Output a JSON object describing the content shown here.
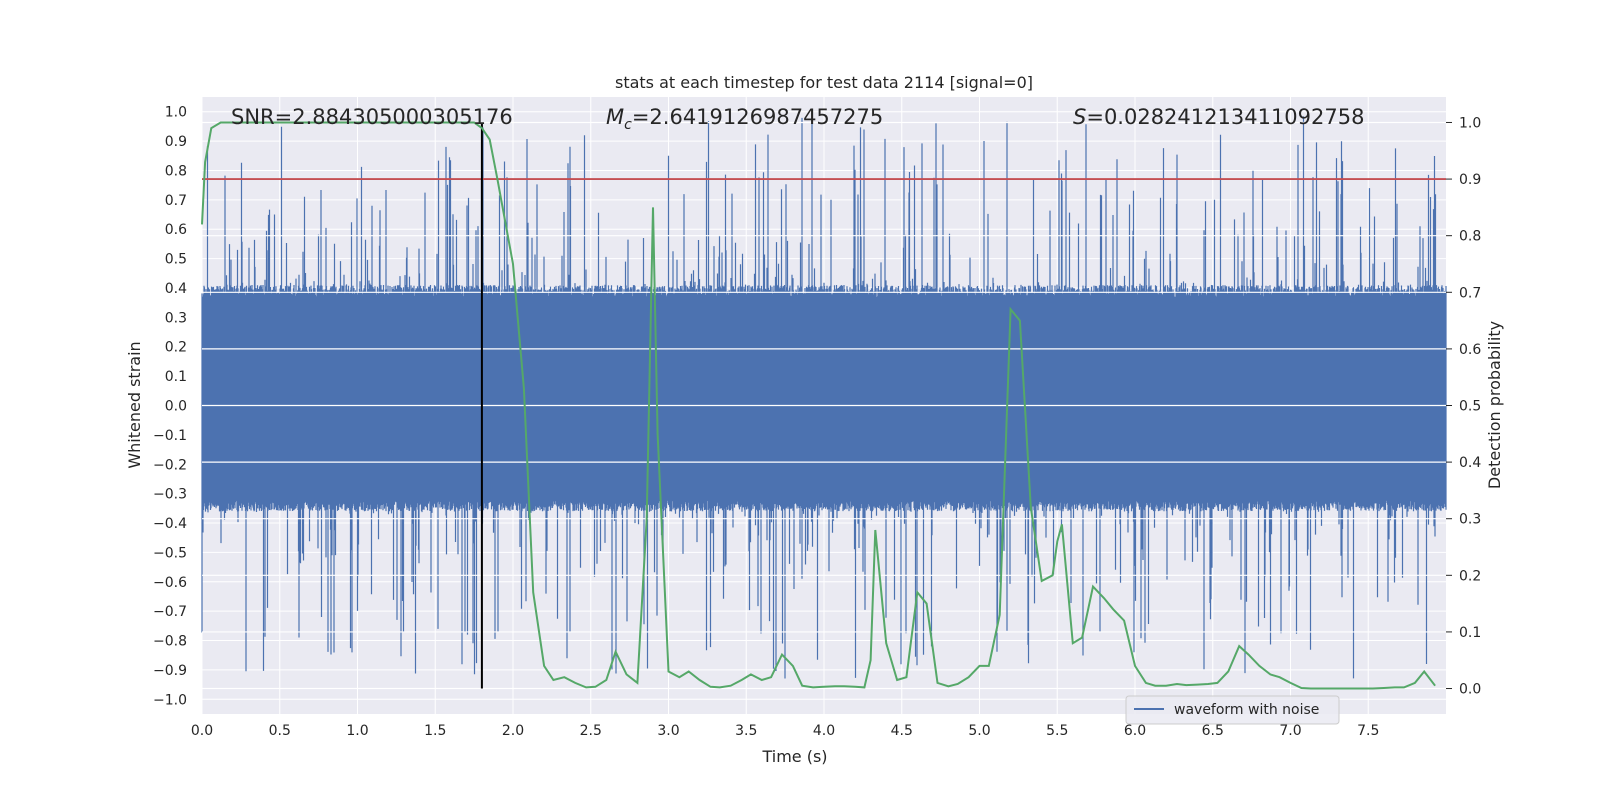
{
  "chart_data": {
    "type": "line",
    "title": "stats at each timestep for test data 2114 [signal=0]",
    "xlabel": "Time (s)",
    "ylabel": "Whitened strain",
    "y2label": "Detection probability",
    "xlim": [
      0.0,
      8.0
    ],
    "ylim": [
      -1.05,
      1.05
    ],
    "y2lim": [
      -0.045,
      1.045
    ],
    "x_ticks": [
      "0.0",
      "0.5",
      "1.0",
      "1.5",
      "2.0",
      "2.5",
      "3.0",
      "3.5",
      "4.0",
      "4.5",
      "5.0",
      "5.5",
      "6.0",
      "6.5",
      "7.0",
      "7.5"
    ],
    "y_ticks": [
      "1.0",
      "0.9",
      "0.8",
      "0.7",
      "0.6",
      "0.5",
      "0.4",
      "0.3",
      "0.2",
      "0.1",
      "0.0",
      "−0.1",
      "−0.2",
      "−0.3",
      "−0.4",
      "−0.5",
      "−0.6",
      "−0.7",
      "−0.8",
      "−0.9",
      "−1.0"
    ],
    "y2_ticks": [
      "1.0",
      "0.9",
      "0.8",
      "0.7",
      "0.6",
      "0.5",
      "0.4",
      "0.3",
      "0.2",
      "0.1",
      "0.0"
    ],
    "annotations": {
      "snr": "SNR=2.884305000305176",
      "mc_symbol": "M",
      "mc_sub": "c",
      "mc_value": "=2.6419126987457275",
      "s_symbol": "S",
      "s_value": "=0.028241213411092758"
    },
    "threshold_y2": 0.9,
    "threshold_color": "#c44e52",
    "vline_x": 1.8,
    "vline_y2_range": [
      0.0,
      1.0
    ],
    "legend": {
      "label": "waveform with noise",
      "position": "lower-right"
    },
    "colors": {
      "waveform": "#4c72b0",
      "probability": "#55a868",
      "vline": "#000000",
      "plot_bg": "#eaeaf2",
      "grid": "#ffffff"
    },
    "grid": true,
    "series": [
      {
        "name": "waveform with noise",
        "kind": "noise-envelope",
        "x_range": [
          0.0,
          8.0
        ],
        "envelope_top": 0.41,
        "envelope_bottom": -0.36,
        "peak_max": 1.0,
        "trough_min": -0.93
      },
      {
        "name": "",
        "axis": "y2",
        "x": [
          0.0,
          0.02,
          0.06,
          0.12,
          0.2,
          0.5,
          1.0,
          1.5,
          1.75,
          1.8,
          1.85,
          1.9,
          2.0,
          2.07,
          2.13,
          2.2,
          2.26,
          2.33,
          2.4,
          2.47,
          2.53,
          2.6,
          2.66,
          2.73,
          2.8,
          2.86,
          2.9,
          2.93,
          3.0,
          3.07,
          3.13,
          3.2,
          3.27,
          3.33,
          3.4,
          3.47,
          3.53,
          3.6,
          3.66,
          3.73,
          3.8,
          3.86,
          3.93,
          4.0,
          4.07,
          4.13,
          4.2,
          4.26,
          4.3,
          4.33,
          4.4,
          4.47,
          4.53,
          4.6,
          4.66,
          4.73,
          4.8,
          4.86,
          4.93,
          5.0,
          5.06,
          5.13,
          5.2,
          5.26,
          5.33,
          5.4,
          5.47,
          5.5,
          5.53,
          5.6,
          5.66,
          5.73,
          5.8,
          5.86,
          5.93,
          6.0,
          6.07,
          6.13,
          6.2,
          6.27,
          6.33,
          6.4,
          6.47,
          6.53,
          6.6,
          6.67,
          6.73,
          6.8,
          6.87,
          6.93,
          7.0,
          7.07,
          7.13,
          7.2,
          7.27,
          7.33,
          7.4,
          7.47,
          7.53,
          7.6,
          7.67,
          7.73,
          7.8,
          7.86,
          7.93
        ],
        "y": [
          0.82,
          0.93,
          0.99,
          1.0,
          1.0,
          1.0,
          1.0,
          1.0,
          1.0,
          0.99,
          0.97,
          0.9,
          0.75,
          0.53,
          0.17,
          0.04,
          0.015,
          0.02,
          0.01,
          0.002,
          0.003,
          0.015,
          0.065,
          0.025,
          0.01,
          0.3,
          0.85,
          0.45,
          0.03,
          0.02,
          0.03,
          0.015,
          0.003,
          0.002,
          0.005,
          0.015,
          0.025,
          0.015,
          0.02,
          0.06,
          0.04,
          0.005,
          0.002,
          0.003,
          0.004,
          0.004,
          0.003,
          0.002,
          0.05,
          0.28,
          0.08,
          0.015,
          0.02,
          0.17,
          0.15,
          0.01,
          0.004,
          0.008,
          0.02,
          0.04,
          0.04,
          0.13,
          0.67,
          0.65,
          0.32,
          0.19,
          0.2,
          0.26,
          0.29,
          0.08,
          0.09,
          0.18,
          0.16,
          0.14,
          0.12,
          0.04,
          0.01,
          0.005,
          0.005,
          0.008,
          0.006,
          0.007,
          0.008,
          0.01,
          0.03,
          0.075,
          0.06,
          0.04,
          0.025,
          0.02,
          0.01,
          0.001,
          0.0,
          0.0,
          0.0,
          0.0,
          0.0,
          0.0,
          0.0,
          0.001,
          0.002,
          0.002,
          0.01,
          0.03,
          0.005
        ]
      }
    ]
  }
}
